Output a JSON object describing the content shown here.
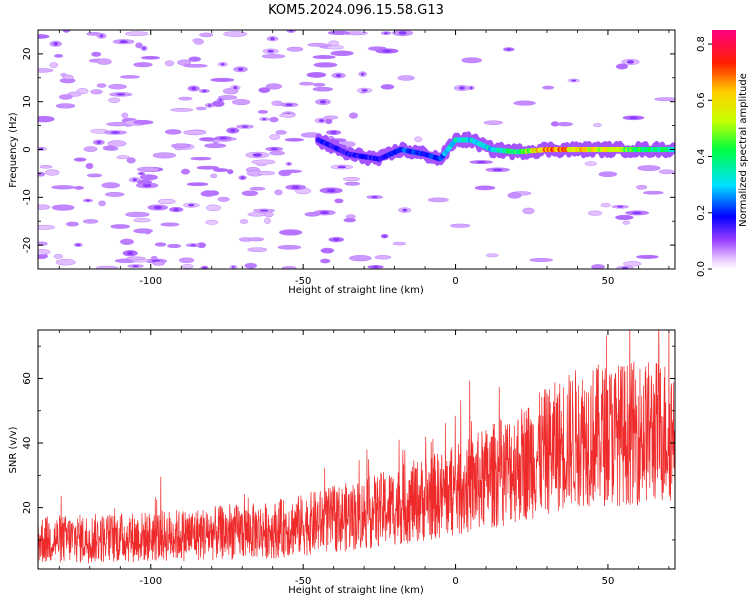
{
  "title": "KOM5.2024.096.15.58.G13",
  "chart_data": [
    {
      "type": "heatmap",
      "name": "spectrogram",
      "xlabel": "Height of straight line (km)",
      "ylabel": "Frequency (Hz)",
      "xlim": [
        -137,
        72
      ],
      "ylim": [
        -25,
        25
      ],
      "xticks": [
        -100,
        -50,
        0,
        50
      ],
      "xtick_labels": [
        "-100",
        "-50",
        "0",
        "50"
      ],
      "yticks": [
        -20,
        -10,
        0,
        10,
        20
      ],
      "ytick_labels": [
        "-20",
        "-10",
        "0",
        "10",
        "20"
      ],
      "colorbar": {
        "label": "Normalized spectral amplitude",
        "range": [
          0.0,
          0.85
        ],
        "ticks": [
          0.0,
          0.2,
          0.4,
          0.6,
          0.8
        ],
        "tick_labels": [
          "0.0",
          "0.2",
          "0.4",
          "0.6",
          "0.8"
        ]
      },
      "ridge": [
        {
          "x": -45,
          "y": 2,
          "v": 0.2
        },
        {
          "x": -35,
          "y": -1,
          "v": 0.18
        },
        {
          "x": -25,
          "y": -2,
          "v": 0.18
        },
        {
          "x": -18,
          "y": 0,
          "v": 0.25
        },
        {
          "x": -10,
          "y": -1,
          "v": 0.22
        },
        {
          "x": -5,
          "y": -2,
          "v": 0.25
        },
        {
          "x": 0,
          "y": 2,
          "v": 0.38
        },
        {
          "x": 5,
          "y": 2,
          "v": 0.35
        },
        {
          "x": 12,
          "y": 0,
          "v": 0.35
        },
        {
          "x": 20,
          "y": -0.5,
          "v": 0.45
        },
        {
          "x": 30,
          "y": 0,
          "v": 0.75
        },
        {
          "x": 40,
          "y": 0,
          "v": 0.65
        },
        {
          "x": 50,
          "y": 0,
          "v": 0.6
        },
        {
          "x": 60,
          "y": 0,
          "v": 0.45
        },
        {
          "x": 72,
          "y": 0,
          "v": 0.4
        }
      ]
    },
    {
      "type": "line",
      "name": "snr",
      "xlabel": "Height of straight line (km)",
      "ylabel": "SNR (v/v)",
      "xlim": [
        -137,
        72
      ],
      "ylim": [
        1,
        75
      ],
      "xticks": [
        -100,
        -50,
        0,
        50
      ],
      "xtick_labels": [
        "-100",
        "-50",
        "0",
        "50"
      ],
      "yticks": [
        20,
        40,
        60
      ],
      "ytick_labels": [
        "20",
        "40",
        "60"
      ],
      "series": [
        {
          "color": "#ee2a2a",
          "trend": [
            {
              "x": -137,
              "y": 10
            },
            {
              "x": -100,
              "y": 11
            },
            {
              "x": -60,
              "y": 13
            },
            {
              "x": -30,
              "y": 18
            },
            {
              "x": 0,
              "y": 25
            },
            {
              "x": 20,
              "y": 33
            },
            {
              "x": 40,
              "y": 42
            },
            {
              "x": 72,
              "y": 44
            }
          ]
        }
      ]
    }
  ]
}
